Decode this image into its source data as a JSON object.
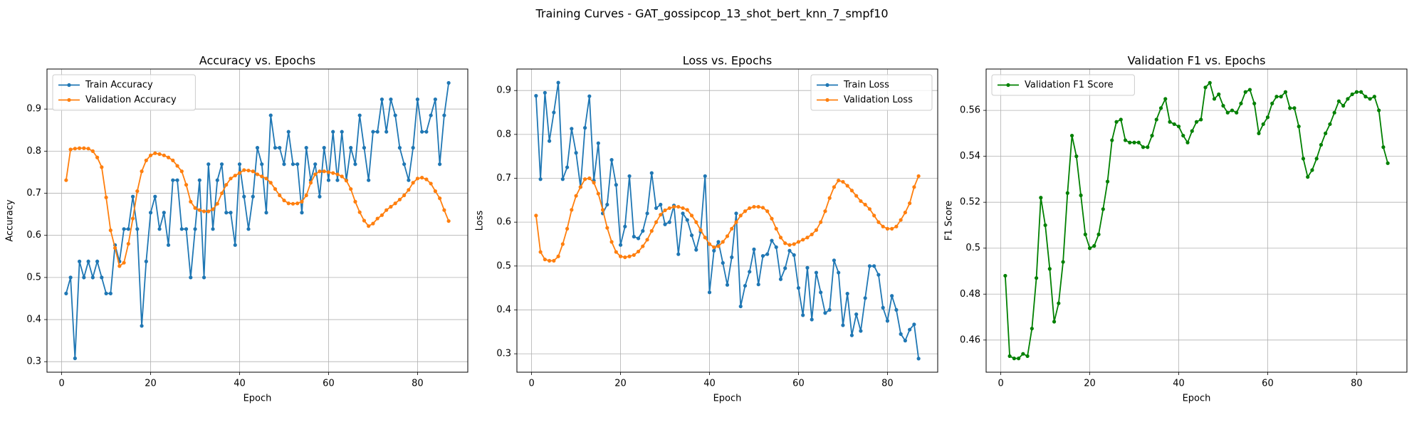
{
  "title": "Training Curves - GAT_gossipcop_13_shot_bert_knn_7_smpf10",
  "chart_data": [
    {
      "type": "line",
      "title": "Accuracy vs. Epochs",
      "xlabel": "Epoch",
      "ylabel": "Accuracy",
      "x": [
        1,
        2,
        3,
        4,
        5,
        6,
        7,
        8,
        9,
        10,
        11,
        12,
        13,
        14,
        15,
        16,
        17,
        18,
        19,
        20,
        21,
        22,
        23,
        24,
        25,
        26,
        27,
        28,
        29,
        30,
        31,
        32,
        33,
        34,
        35,
        36,
        37,
        38,
        39,
        40,
        41,
        42,
        43,
        44,
        45,
        46,
        47,
        48,
        49,
        50,
        51,
        52,
        53,
        54,
        55,
        56,
        57,
        58,
        59,
        60,
        61,
        62,
        63,
        64,
        65,
        66,
        67,
        68,
        69,
        70,
        71,
        72,
        73,
        74,
        75,
        76,
        77,
        78,
        79,
        80,
        81,
        82,
        83,
        84,
        85,
        86,
        87
      ],
      "series": [
        {
          "name": "Train Accuracy",
          "color": "#1f77b4",
          "values": [
            0.462,
            0.5,
            0.308,
            0.538,
            0.5,
            0.538,
            0.5,
            0.538,
            0.5,
            0.462,
            0.462,
            0.577,
            0.538,
            0.615,
            0.615,
            0.692,
            0.615,
            0.385,
            0.538,
            0.654,
            0.692,
            0.615,
            0.654,
            0.577,
            0.731,
            0.731,
            0.615,
            0.615,
            0.5,
            0.615,
            0.731,
            0.5,
            0.769,
            0.615,
            0.731,
            0.769,
            0.654,
            0.654,
            0.577,
            0.769,
            0.692,
            0.615,
            0.692,
            0.808,
            0.769,
            0.654,
            0.885,
            0.808,
            0.808,
            0.769,
            0.846,
            0.769,
            0.769,
            0.654,
            0.808,
            0.731,
            0.769,
            0.692,
            0.808,
            0.731,
            0.846,
            0.731,
            0.846,
            0.731,
            0.808,
            0.769,
            0.885,
            0.808,
            0.731,
            0.846,
            0.846,
            0.923,
            0.846,
            0.923,
            0.885,
            0.808,
            0.769,
            0.731,
            0.808,
            0.923,
            0.846,
            0.846,
            0.885,
            0.923,
            0.769,
            0.885,
            0.962
          ]
        },
        {
          "name": "Validation Accuracy",
          "color": "#ff7f0e",
          "values": [
            0.731,
            0.804,
            0.806,
            0.807,
            0.807,
            0.806,
            0.8,
            0.785,
            0.762,
            0.69,
            0.612,
            0.57,
            0.527,
            0.535,
            0.58,
            0.64,
            0.705,
            0.752,
            0.778,
            0.79,
            0.795,
            0.793,
            0.79,
            0.785,
            0.778,
            0.765,
            0.752,
            0.72,
            0.68,
            0.665,
            0.66,
            0.657,
            0.657,
            0.662,
            0.675,
            0.7,
            0.72,
            0.735,
            0.742,
            0.748,
            0.755,
            0.754,
            0.752,
            0.745,
            0.74,
            0.735,
            0.725,
            0.71,
            0.695,
            0.683,
            0.676,
            0.675,
            0.676,
            0.68,
            0.695,
            0.725,
            0.745,
            0.752,
            0.752,
            0.75,
            0.748,
            0.745,
            0.74,
            0.73,
            0.71,
            0.68,
            0.655,
            0.635,
            0.622,
            0.628,
            0.64,
            0.648,
            0.66,
            0.668,
            0.676,
            0.685,
            0.695,
            0.708,
            0.725,
            0.735,
            0.737,
            0.733,
            0.723,
            0.705,
            0.688,
            0.66,
            0.634
          ]
        }
      ],
      "xlim": [
        -3.3,
        91.3
      ],
      "ylim": [
        0.275,
        0.995
      ],
      "xticks": [
        0,
        20,
        40,
        60,
        80
      ],
      "yticks": [
        0.3,
        0.4,
        0.5,
        0.6,
        0.7,
        0.8,
        0.9
      ],
      "grid": true,
      "legend": "upper left",
      "marker": "o"
    },
    {
      "type": "line",
      "title": "Loss vs. Epochs",
      "xlabel": "Epoch",
      "ylabel": "Loss",
      "x": [
        1,
        2,
        3,
        4,
        5,
        6,
        7,
        8,
        9,
        10,
        11,
        12,
        13,
        14,
        15,
        16,
        17,
        18,
        19,
        20,
        21,
        22,
        23,
        24,
        25,
        26,
        27,
        28,
        29,
        30,
        31,
        32,
        33,
        34,
        35,
        36,
        37,
        38,
        39,
        40,
        41,
        42,
        43,
        44,
        45,
        46,
        47,
        48,
        49,
        50,
        51,
        52,
        53,
        54,
        55,
        56,
        57,
        58,
        59,
        60,
        61,
        62,
        63,
        64,
        65,
        66,
        67,
        68,
        69,
        70,
        71,
        72,
        73,
        74,
        75,
        76,
        77,
        78,
        79,
        80,
        81,
        82,
        83,
        84,
        85,
        86,
        87
      ],
      "series": [
        {
          "name": "Train Loss",
          "color": "#1f77b4",
          "values": [
            0.888,
            0.698,
            0.895,
            0.785,
            0.85,
            0.918,
            0.698,
            0.725,
            0.813,
            0.758,
            0.68,
            0.815,
            0.887,
            0.695,
            0.78,
            0.62,
            0.64,
            0.742,
            0.685,
            0.548,
            0.59,
            0.705,
            0.567,
            0.563,
            0.58,
            0.62,
            0.712,
            0.632,
            0.64,
            0.595,
            0.6,
            0.638,
            0.527,
            0.62,
            0.605,
            0.57,
            0.537,
            0.578,
            0.705,
            0.44,
            0.535,
            0.555,
            0.507,
            0.457,
            0.52,
            0.62,
            0.408,
            0.455,
            0.487,
            0.538,
            0.458,
            0.523,
            0.527,
            0.558,
            0.543,
            0.47,
            0.495,
            0.535,
            0.525,
            0.45,
            0.388,
            0.496,
            0.378,
            0.485,
            0.44,
            0.393,
            0.4,
            0.513,
            0.485,
            0.365,
            0.437,
            0.342,
            0.39,
            0.352,
            0.427,
            0.5,
            0.5,
            0.48,
            0.405,
            0.375,
            0.432,
            0.4,
            0.345,
            0.33,
            0.355,
            0.367,
            0.289
          ]
        },
        {
          "name": "Validation Loss",
          "color": "#ff7f0e",
          "values": [
            0.615,
            0.532,
            0.515,
            0.512,
            0.512,
            0.522,
            0.55,
            0.585,
            0.628,
            0.66,
            0.68,
            0.698,
            0.7,
            0.69,
            0.665,
            0.628,
            0.587,
            0.555,
            0.532,
            0.522,
            0.52,
            0.522,
            0.525,
            0.533,
            0.545,
            0.56,
            0.58,
            0.6,
            0.617,
            0.627,
            0.632,
            0.635,
            0.635,
            0.632,
            0.628,
            0.615,
            0.6,
            0.582,
            0.565,
            0.55,
            0.543,
            0.545,
            0.555,
            0.568,
            0.585,
            0.6,
            0.615,
            0.625,
            0.632,
            0.635,
            0.635,
            0.633,
            0.625,
            0.608,
            0.585,
            0.565,
            0.552,
            0.548,
            0.55,
            0.555,
            0.56,
            0.565,
            0.572,
            0.582,
            0.6,
            0.625,
            0.655,
            0.68,
            0.695,
            0.692,
            0.683,
            0.672,
            0.66,
            0.648,
            0.64,
            0.63,
            0.615,
            0.6,
            0.59,
            0.585,
            0.585,
            0.59,
            0.605,
            0.622,
            0.643,
            0.68,
            0.705
          ]
        }
      ],
      "xlim": [
        -3.3,
        91.3
      ],
      "ylim": [
        0.258,
        0.949
      ],
      "xticks": [
        0,
        20,
        40,
        60,
        80
      ],
      "yticks": [
        0.3,
        0.4,
        0.5,
        0.6,
        0.7,
        0.8,
        0.9
      ],
      "grid": true,
      "legend": "upper right",
      "marker": "o"
    },
    {
      "type": "line",
      "title": "Validation F1 vs. Epochs",
      "xlabel": "Epoch",
      "ylabel": "F1 Score",
      "x": [
        1,
        2,
        3,
        4,
        5,
        6,
        7,
        8,
        9,
        10,
        11,
        12,
        13,
        14,
        15,
        16,
        17,
        18,
        19,
        20,
        21,
        22,
        23,
        24,
        25,
        26,
        27,
        28,
        29,
        30,
        31,
        32,
        33,
        34,
        35,
        36,
        37,
        38,
        39,
        40,
        41,
        42,
        43,
        44,
        45,
        46,
        47,
        48,
        49,
        50,
        51,
        52,
        53,
        54,
        55,
        56,
        57,
        58,
        59,
        60,
        61,
        62,
        63,
        64,
        65,
        66,
        67,
        68,
        69,
        70,
        71,
        72,
        73,
        74,
        75,
        76,
        77,
        78,
        79,
        80,
        81,
        82,
        83,
        84,
        85,
        86,
        87
      ],
      "series": [
        {
          "name": "Validation F1 Score",
          "color": "#008000",
          "values": [
            0.488,
            0.453,
            0.452,
            0.452,
            0.454,
            0.453,
            0.465,
            0.487,
            0.522,
            0.51,
            0.491,
            0.468,
            0.476,
            0.494,
            0.524,
            0.549,
            0.54,
            0.523,
            0.506,
            0.5,
            0.501,
            0.506,
            0.517,
            0.529,
            0.547,
            0.555,
            0.556,
            0.547,
            0.546,
            0.546,
            0.546,
            0.544,
            0.544,
            0.549,
            0.556,
            0.561,
            0.565,
            0.555,
            0.554,
            0.553,
            0.549,
            0.546,
            0.551,
            0.555,
            0.556,
            0.57,
            0.572,
            0.565,
            0.567,
            0.562,
            0.559,
            0.56,
            0.559,
            0.563,
            0.568,
            0.569,
            0.563,
            0.55,
            0.554,
            0.557,
            0.563,
            0.566,
            0.566,
            0.568,
            0.561,
            0.561,
            0.553,
            0.539,
            0.531,
            0.534,
            0.539,
            0.545,
            0.55,
            0.554,
            0.559,
            0.564,
            0.562,
            0.565,
            0.567,
            0.568,
            0.568,
            0.566,
            0.565,
            0.566,
            0.56,
            0.544,
            0.537
          ]
        }
      ],
      "xlim": [
        -3.3,
        91.3
      ],
      "ylim": [
        0.446,
        0.578
      ],
      "xticks": [
        0,
        20,
        40,
        60,
        80
      ],
      "yticks": [
        0.46,
        0.48,
        0.5,
        0.52,
        0.54,
        0.56
      ],
      "grid": true,
      "legend": "upper left",
      "marker": "o"
    }
  ]
}
